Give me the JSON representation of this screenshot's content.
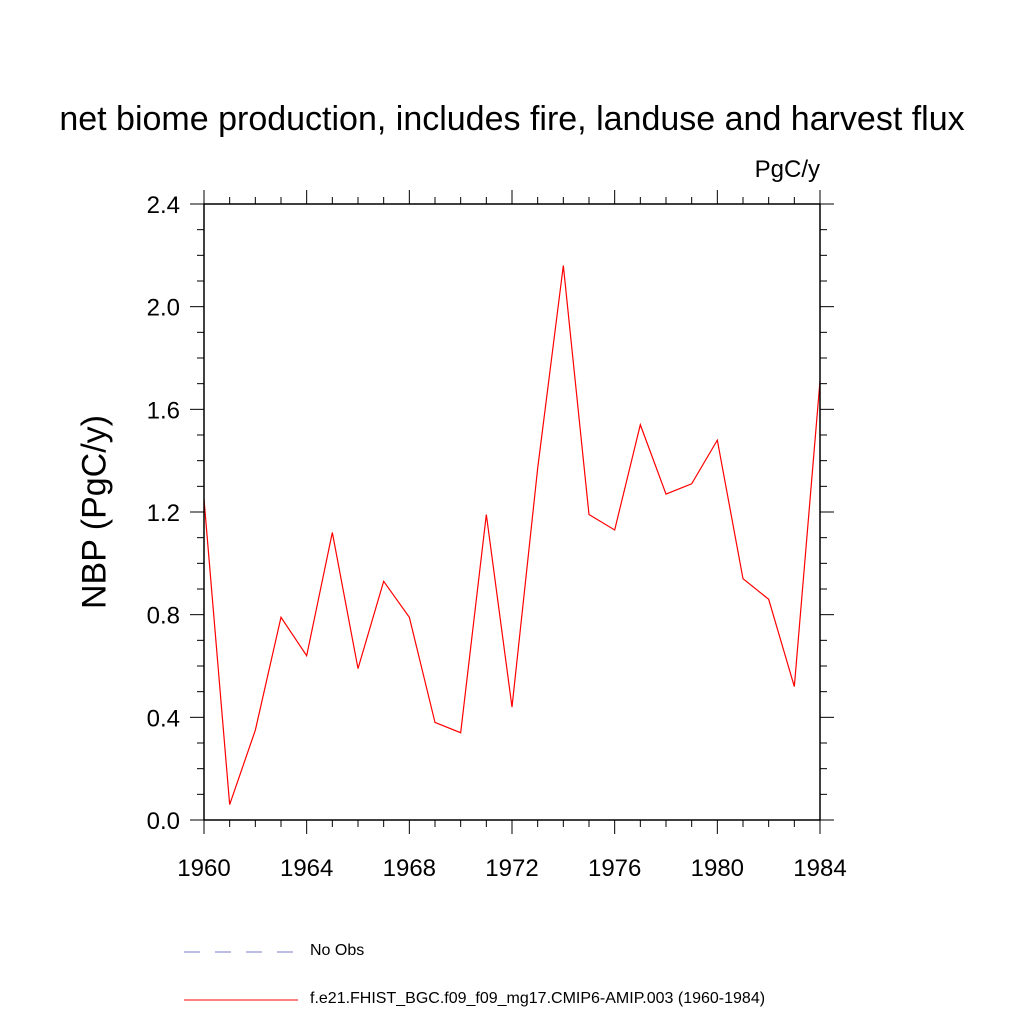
{
  "chart_data": {
    "type": "line",
    "title": "net biome production, includes fire, landuse and harvest flux",
    "units": "PgC/y",
    "xlabel": "",
    "ylabel": "NBP  (PgC/y)",
    "xlim": [
      1960,
      1984
    ],
    "ylim": [
      0.0,
      2.4
    ],
    "xticks": [
      "1960",
      "1964",
      "1968",
      "1972",
      "1976",
      "1980",
      "1984"
    ],
    "yticks": [
      "0.0",
      "0.4",
      "0.8",
      "1.2",
      "1.6",
      "2.0",
      "2.4"
    ],
    "grid": false,
    "legend": "bottom",
    "series": [
      {
        "name": "f.e21.FHIST_BGC.f09_f09_mg17.CMIP6-AMIP.003 (1960-1984)",
        "color": "#ff0000",
        "style": "solid",
        "x": [
          1960,
          1961,
          1962,
          1963,
          1964,
          1965,
          1966,
          1967,
          1968,
          1969,
          1970,
          1971,
          1972,
          1973,
          1974,
          1975,
          1976,
          1977,
          1978,
          1979,
          1980,
          1981,
          1982,
          1983,
          1984
        ],
        "y": [
          1.25,
          0.06,
          0.35,
          0.79,
          0.64,
          1.12,
          0.59,
          0.93,
          0.79,
          0.38,
          0.34,
          1.19,
          0.44,
          1.37,
          2.16,
          1.19,
          1.13,
          1.54,
          1.27,
          1.31,
          1.48,
          0.94,
          0.86,
          0.52,
          1.71
        ]
      }
    ],
    "legend_entries": [
      {
        "label": "No Obs",
        "color": "#7a7ac8",
        "style": "dashed"
      },
      {
        "label": "f.e21.FHIST_BGC.f09_f09_mg17.CMIP6-AMIP.003 (1960-1984)",
        "color": "#ff0000",
        "style": "solid"
      }
    ]
  }
}
